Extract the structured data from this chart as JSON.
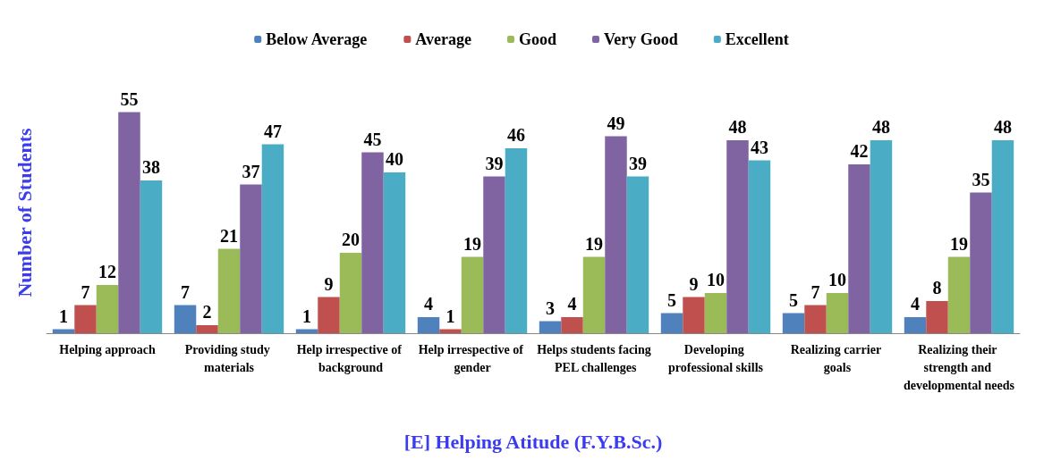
{
  "chart_data": {
    "type": "bar",
    "xlabel": "[E] Helping Atitude (F.Y.B.Sc.)",
    "ylabel": "Number of Students",
    "categories": [
      "Helping approach",
      "Providing study materials",
      "Help irrespective of background",
      "Help irrespective of gender",
      "Helps students facing PEL challenges",
      "Developing professional skills",
      "Realizing carrier goals",
      "Realizing their strength and developmental needs"
    ],
    "series": [
      {
        "name": "Below Average",
        "color": "#4f81bd",
        "values": [
          1,
          7,
          1,
          4,
          3,
          5,
          5,
          4
        ]
      },
      {
        "name": "Average",
        "color": "#c0504d",
        "values": [
          7,
          2,
          9,
          1,
          4,
          9,
          7,
          8
        ]
      },
      {
        "name": "Good",
        "color": "#9bbb59",
        "values": [
          12,
          21,
          20,
          19,
          19,
          10,
          10,
          19
        ]
      },
      {
        "name": "Very Good",
        "color": "#8064a2",
        "values": [
          55,
          37,
          45,
          39,
          49,
          48,
          42,
          35
        ]
      },
      {
        "name": "Excellent",
        "color": "#4bacc6",
        "values": [
          38,
          47,
          40,
          46,
          39,
          43,
          48,
          48
        ]
      }
    ],
    "data_labels": true,
    "legend": "top",
    "grid": false
  }
}
